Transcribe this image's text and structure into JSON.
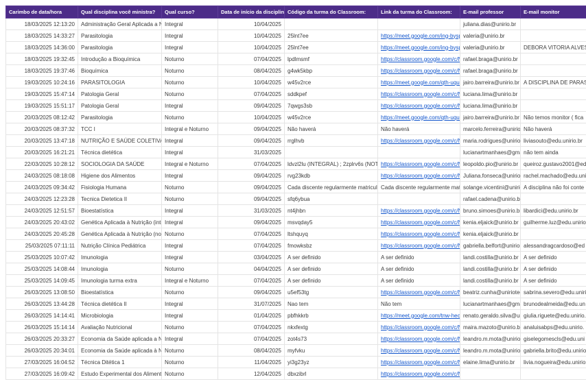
{
  "colors": {
    "header_bg": "#4c2c88",
    "link": "#1155cc",
    "grid": "#e4e4e4",
    "text": "#3c3c3c"
  },
  "table": {
    "columns": [
      {
        "key": "timestamp",
        "label": "Carimbo de data/hora"
      },
      {
        "key": "discipline",
        "label": "Qual disciplina você ministra?"
      },
      {
        "key": "course",
        "label": "Qual curso?"
      },
      {
        "key": "start_date",
        "label": "Data de início da disciplina"
      },
      {
        "key": "code",
        "label": "Código da turma do Classroom:"
      },
      {
        "key": "link",
        "label": "Link da turma do Classroom:"
      },
      {
        "key": "prof_email",
        "label": "E-mail professor"
      },
      {
        "key": "monitor_email",
        "label": "E-mail monitor"
      }
    ],
    "rows": [
      {
        "timestamp": "18/03/2025 12:13:20",
        "discipline": "Administração Geral Aplicada a Nutri",
        "course": "Integral",
        "start_date": "10/04/2025",
        "code": "",
        "link": "",
        "prof_email": "juliana.dias@unirio.br",
        "monitor_email": ""
      },
      {
        "timestamp": "18/03/2025 14:33:27",
        "discipline": "Parasitologia",
        "course": "Integral",
        "start_date": "10/04/2025",
        "code": "25lnt7ee",
        "link": "https://meet.google.com/ing-bysp-",
        "prof_email": "valeria@unirio.br",
        "monitor_email": ""
      },
      {
        "timestamp": "18/03/2025 14:36:00",
        "discipline": "Parasitologia",
        "course": "Integral",
        "start_date": "10/04/2025",
        "code": "25lnt7ee",
        "link": "https://meet.google.com/ing-bysp-",
        "prof_email": "valeria@unirio.br",
        "monitor_email": "DEBORA VITORIA ALVES"
      },
      {
        "timestamp": "18/03/2025 19:32:45",
        "discipline": "Introdução a Bioquímica",
        "course": "Noturno",
        "start_date": "07/04/2025",
        "code": "lpdlmsmf",
        "link": "https://classroom.google.com/c/N",
        "prof_email": "rafael.braga@unirio.br",
        "monitor_email": ""
      },
      {
        "timestamp": "18/03/2025 19:37:46",
        "discipline": "Bioquímica",
        "course": "Noturno",
        "start_date": "08/04/2025",
        "code": "g4wk5kbp",
        "link": "https://classroom.google.com/c/N",
        "prof_email": "rafael.braga@unirio.br",
        "monitor_email": ""
      },
      {
        "timestamp": "19/03/2025 10:24:16",
        "discipline": "PARASITOLOGIA",
        "course": "Noturno",
        "start_date": "10/04/2025",
        "code": "w45v2rce",
        "link": "https://meet.google.com/qth-uqum",
        "prof_email": "jairo.barreira@unirio.br",
        "monitor_email": "A DISCIPLINA DE PARAS"
      },
      {
        "timestamp": "19/03/2025 15:47:14",
        "discipline": "Patologia Geral",
        "course": "Noturno",
        "start_date": "07/04/2025",
        "code": "sddkpef",
        "link": "https://classroom.google.com/c/N",
        "prof_email": "luciana.lima@unirio.br",
        "monitor_email": ""
      },
      {
        "timestamp": "19/03/2025 15:51:17",
        "discipline": "Patologia Geral",
        "course": "Integral",
        "start_date": "09/04/2025",
        "code": "7qwgs3sb",
        "link": "https://classroom.google.com/c/N",
        "prof_email": "luciana.lima@unirio.br",
        "monitor_email": ""
      },
      {
        "timestamp": "20/03/2025 08:12:42",
        "discipline": "Parasitologia",
        "course": "Noturno",
        "start_date": "10/04/2025",
        "code": "w45v2rce",
        "link": "https://meet.google.com/qth-uqum",
        "prof_email": "jairo.barreira@unirio.br",
        "monitor_email": "Não temos monitor ( fica"
      },
      {
        "timestamp": "20/03/2025 08:37:32",
        "discipline": "TCC I",
        "course": "Integral e Noturno",
        "start_date": "09/04/2025",
        "code": "Não haverá",
        "link": "Não haverá",
        "prof_email": "marcelo.ferreira@unirio.b",
        "monitor_email": "Não haverá"
      },
      {
        "timestamp": "20/03/2025 13:47:18",
        "discipline": "NUTRIÇÃO E SAÚDE COLETIVA",
        "course": "Integral",
        "start_date": "09/04/2025",
        "code": "rrglhvb",
        "link": "https://classroom.google.com/c/N",
        "prof_email": "maria.rodrigues@unirio.b",
        "monitor_email": "liviasouto@edu.unirio.br"
      },
      {
        "timestamp": "20/03/2025 16:21:21",
        "discipline": "Técnica dietética",
        "course": "Integral",
        "start_date": "31/03/2025",
        "code": "",
        "link": "",
        "prof_email": "lucianartmanhaes@gma",
        "monitor_email": "não tem ainda"
      },
      {
        "timestamp": "22/03/2025 10:28:12",
        "discipline": "SOCIOLOGIA DA SAÚDE",
        "course": "Integral e Noturno",
        "start_date": "07/04/2025",
        "code": "ldvzl2lu (INTEGRAL) ; 2zplrv6s (NOTUI",
        "link": "https://classroom.google.com/c/N",
        "prof_email": "leopoldo.pio@unirio.br",
        "monitor_email": "queiroz.gustavo2001@ed"
      },
      {
        "timestamp": "24/03/2025 08:18:08",
        "discipline": "Higiene dos Alimentos",
        "course": "Integral",
        "start_date": "09/04/2025",
        "code": "rvg23kdb",
        "link": "https://classroom.google.com/c/N",
        "prof_email": "Juliana.fonseca@unirio.b",
        "monitor_email": "rachel.machado@edu.uni"
      },
      {
        "timestamp": "24/03/2025 09:34:42",
        "discipline": "Fisiologia Humana",
        "course": "Noturno",
        "start_date": "09/04/2025",
        "code": "Cada discente regularmente matricula",
        "link": "Cada discente regularmente matric",
        "prof_email": "solange.vicentini@unirio.",
        "monitor_email": "A disciplina não foi conte"
      },
      {
        "timestamp": "24/03/2025 12:23:28",
        "discipline": "Tecnica Dietetica II",
        "course": "Noturno",
        "start_date": "09/04/2025",
        "code": "sfq6ybua",
        "link": "",
        "prof_email": "rafael.cadena@unirio.br",
        "monitor_email": ""
      },
      {
        "timestamp": "24/03/2025 12:51:57",
        "discipline": "Bioestatística",
        "course": "Integral",
        "start_date": "31/03/2025",
        "code": "nt4jhbn",
        "link": "https://classroom.google.com/c/N",
        "prof_email": "bruno.simoes@unirio.br",
        "monitor_email": "libardici@edu.unirio.br"
      },
      {
        "timestamp": "24/03/2025 20:43:02",
        "discipline": "Genética Aplicada à Nutrição (integ",
        "course": "Integral",
        "start_date": "09/04/2025",
        "code": "msvqday5",
        "link": "https://classroom.google.com/c/N",
        "prof_email": "kenia.eljaick@unirio.br",
        "monitor_email": "guilherme.luz@edu.unirio"
      },
      {
        "timestamp": "24/03/2025 20:45:28",
        "discipline": "Genética Aplicada à Nutrição (notur",
        "course": "Noturno",
        "start_date": "07/04/2025",
        "code": "ltshquyq",
        "link": "https://classroom.google.com/c/N",
        "prof_email": "kenia.eljaick@unirio.br",
        "monitor_email": ""
      },
      {
        "timestamp": "25/03/2025 07:11:11",
        "discipline": "Nutrição Clínica Pediátrica",
        "course": "Integral",
        "start_date": "07/04/2025",
        "code": "fmowksbz",
        "link": "https://classroom.google.com/c/N",
        "prof_email": "gabriella.belfort@unirio.b",
        "monitor_email": "alessandragcardoso@ed"
      },
      {
        "timestamp": "25/03/2025 10:07:42",
        "discipline": "Imunologia",
        "course": "Integral",
        "start_date": "03/04/2025",
        "code": "A ser definido",
        "link": "A ser definido",
        "prof_email": "landi.costilla@unirio.br",
        "monitor_email": "A ser definido"
      },
      {
        "timestamp": "25/03/2025 14:08:44",
        "discipline": "Imunologia",
        "course": "Noturno",
        "start_date": "04/04/2025",
        "code": "A ser definido",
        "link": "A ser definido",
        "prof_email": "landi.costilla@unirio.br",
        "monitor_email": "A ser definido"
      },
      {
        "timestamp": "25/03/2025 14:09:45",
        "discipline": "Imunologia turma extra",
        "course": "Integral e Noturno",
        "start_date": "07/04/2025",
        "code": "A ser definido",
        "link": "A ser definido",
        "prof_email": "landi.costilla@unirio.br",
        "monitor_email": "A ser definido"
      },
      {
        "timestamp": "26/03/2025 13:08:50",
        "discipline": "Bioestatística",
        "course": "Noturno",
        "start_date": "09/04/2025",
        "code": "u5ef53tg",
        "link": "https://classroom.google.com/c/N",
        "prof_email": "beatriz.cunha@uniriotec.",
        "monitor_email": "sabrina.severo@edu.uniri"
      },
      {
        "timestamp": "26/03/2025 13:44:28",
        "discipline": "Técnica dietética II",
        "course": "Integral",
        "start_date": "31/07/2025",
        "code": "Nao tem",
        "link": "Não tem",
        "prof_email": "lucianartmanhaes@gma",
        "monitor_email": "brunodealmeida@edu.un"
      },
      {
        "timestamp": "26/03/2025 14:14:41",
        "discipline": "Microbiologia",
        "course": "Integral",
        "start_date": "01/04/2025",
        "code": "pbfhkkrb",
        "link": "https://meet.google.com/tnw-hecn",
        "prof_email": "renato.geraldo.silva@uni",
        "monitor_email": "giulia.riguete@edu.unirio."
      },
      {
        "timestamp": "26/03/2025 15:14:14",
        "discipline": "Avaliação Nutricional",
        "course": "Noturno",
        "start_date": "07/04/2025",
        "code": "nkxfextg",
        "link": "https://classroom.google.com/c/N",
        "prof_email": "maira.mazoto@unirio.br",
        "monitor_email": "analuisabps@edu.unirio."
      },
      {
        "timestamp": "26/03/2025 20:33:27",
        "discipline": "Economia da Saúde aplicada a Nutri",
        "course": "Integral",
        "start_date": "07/04/2025",
        "code": "zot4s73",
        "link": "https://classroom.google.com/c/N",
        "prof_email": "leandro.m.mota@unirio.l",
        "monitor_email": "giselegomescls@edu.uni"
      },
      {
        "timestamp": "26/03/2025 20:34:01",
        "discipline": "Economia da Saúde aplicada à Nutri",
        "course": "Noturno",
        "start_date": "08/04/2025",
        "code": "myfvku",
        "link": "https://classroom.google.com/c/N",
        "prof_email": "leandro.m.mota@unirio.l",
        "monitor_email": "gabriella.brito@edu.unirio"
      },
      {
        "timestamp": "27/03/2025 16:04:52",
        "discipline": "Técnica Ditética 1",
        "course": "Noturno",
        "start_date": "11/04/2025",
        "code": "yi3g23yz",
        "link": "https://classroom.google.com/c/N",
        "prof_email": "elaine.lima@unirio.br",
        "monitor_email": "livia.nogueira@edu.unirio"
      },
      {
        "timestamp": "27/03/2025 16:09:42",
        "discipline": "Estudo Experimental dos Alimentos",
        "course": "Noturno",
        "start_date": "12/04/2025",
        "code": "dbxzibrl",
        "link": "https://classroom.google.com/c/N",
        "prof_email": "",
        "monitor_email": ""
      }
    ]
  }
}
